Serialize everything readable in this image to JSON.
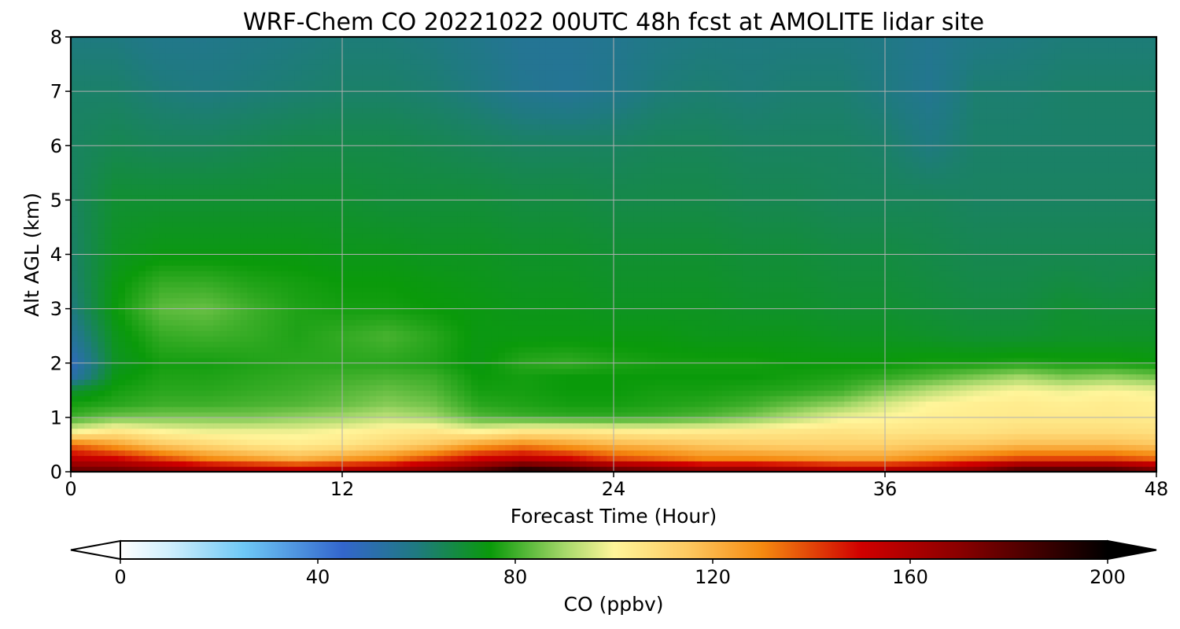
{
  "chart_data": {
    "type": "heatmap",
    "title": "WRF-Chem CO  20221022 00UTC 48h fcst at AMOLITE lidar site",
    "xlabel": "Forecast Time (Hour)",
    "ylabel": "Alt AGL (km)",
    "xlim": [
      0,
      48
    ],
    "ylim": [
      0,
      8
    ],
    "x_ticks": [
      "0",
      "12",
      "24",
      "36",
      "48"
    ],
    "x_tick_values": [
      0,
      12,
      24,
      36,
      48
    ],
    "y_ticks": [
      "0",
      "1",
      "2",
      "3",
      "4",
      "5",
      "6",
      "7",
      "8"
    ],
    "y_tick_values": [
      0,
      1,
      2,
      3,
      4,
      5,
      6,
      7,
      8
    ],
    "grid": true,
    "colorbar": {
      "label": "CO  (ppbv)",
      "range": [
        0,
        200
      ],
      "ticks": [
        "0",
        "40",
        "80",
        "120",
        "160",
        "200"
      ],
      "tick_values": [
        0,
        40,
        80,
        120,
        160,
        200
      ],
      "extend": "both",
      "placement": "bottom",
      "color_stops": [
        {
          "value": 0,
          "color": "#ffffff"
        },
        {
          "value": 10,
          "color": "#cfeefc"
        },
        {
          "value": 25,
          "color": "#6ec8f5"
        },
        {
          "value": 45,
          "color": "#3366cc"
        },
        {
          "value": 60,
          "color": "#1f7a80"
        },
        {
          "value": 75,
          "color": "#0a9a0a"
        },
        {
          "value": 90,
          "color": "#a6d86a"
        },
        {
          "value": 100,
          "color": "#fff59a"
        },
        {
          "value": 115,
          "color": "#fdc860"
        },
        {
          "value": 130,
          "color": "#f58a10"
        },
        {
          "value": 150,
          "color": "#d00000"
        },
        {
          "value": 170,
          "color": "#8a0000"
        },
        {
          "value": 200,
          "color": "#000000"
        }
      ]
    },
    "hours": [
      0,
      2,
      4,
      6,
      8,
      10,
      12,
      14,
      16,
      18,
      20,
      22,
      24,
      26,
      28,
      30,
      32,
      34,
      36,
      38,
      40,
      42,
      44,
      46,
      48
    ],
    "altitudes_km": [
      0,
      0.25,
      0.5,
      0.75,
      1.0,
      1.25,
      1.5,
      1.75,
      2.0,
      2.5,
      3.0,
      3.5,
      4.0,
      5.0,
      6.0,
      7.0,
      8.0
    ],
    "co_ppbv": [
      [
        180,
        180,
        175,
        170,
        165,
        162,
        165,
        168,
        175,
        185,
        200,
        195,
        185,
        180,
        175,
        175,
        170,
        165,
        165,
        168,
        175,
        190,
        190,
        190,
        180
      ],
      [
        155,
        150,
        140,
        130,
        125,
        120,
        125,
        130,
        140,
        150,
        155,
        150,
        140,
        135,
        130,
        130,
        128,
        125,
        125,
        130,
        135,
        140,
        140,
        140,
        135
      ],
      [
        135,
        125,
        115,
        110,
        105,
        103,
        105,
        110,
        115,
        125,
        130,
        125,
        120,
        118,
        115,
        113,
        112,
        112,
        112,
        114,
        115,
        118,
        118,
        118,
        115
      ],
      [
        98,
        105,
        100,
        98,
        98,
        98,
        100,
        103,
        105,
        100,
        105,
        105,
        103,
        102,
        103,
        104,
        105,
        106,
        105,
        106,
        106,
        108,
        108,
        108,
        107
      ],
      [
        80,
        85,
        86,
        86,
        86,
        88,
        90,
        93,
        90,
        82,
        80,
        79,
        79,
        80,
        82,
        86,
        92,
        98,
        100,
        102,
        103,
        104,
        104,
        104,
        103
      ],
      [
        76,
        78,
        80,
        80,
        81,
        82,
        84,
        87,
        85,
        78,
        77,
        76,
        76,
        77,
        78,
        80,
        84,
        88,
        95,
        100,
        102,
        103,
        102,
        103,
        102
      ],
      [
        70,
        76,
        78,
        78,
        79,
        80,
        82,
        84,
        82,
        76,
        76,
        75,
        75,
        76,
        76,
        77,
        78,
        80,
        86,
        92,
        97,
        100,
        98,
        100,
        98
      ],
      [
        52,
        74,
        77,
        77,
        78,
        79,
        80,
        81,
        80,
        75,
        76,
        75,
        75,
        75,
        75,
        75,
        76,
        77,
        79,
        82,
        86,
        90,
        86,
        88,
        85
      ],
      [
        48,
        72,
        76,
        76,
        77,
        78,
        78,
        78,
        77,
        74,
        78,
        79,
        77,
        76,
        76,
        76,
        75,
        75,
        75,
        76,
        76,
        77,
        76,
        76,
        75
      ],
      [
        55,
        73,
        79,
        80,
        79,
        77,
        79,
        81,
        78,
        74,
        74,
        74,
        74,
        74,
        73,
        73,
        73,
        72,
        72,
        71,
        70,
        70,
        71,
        71,
        71
      ],
      [
        60,
        75,
        83,
        84,
        80,
        77,
        76,
        76,
        75,
        74,
        73,
        73,
        72,
        72,
        72,
        71,
        71,
        70,
        70,
        69,
        68,
        68,
        70,
        69,
        69
      ],
      [
        62,
        74,
        79,
        79,
        77,
        76,
        75,
        75,
        74,
        73,
        72,
        72,
        71,
        71,
        71,
        70,
        70,
        69,
        69,
        68,
        67,
        67,
        68,
        67,
        68
      ],
      [
        63,
        72,
        74,
        74,
        74,
        74,
        73,
        73,
        72,
        72,
        71,
        71,
        70,
        70,
        70,
        69,
        69,
        68,
        68,
        67,
        66,
        66,
        66,
        66,
        66
      ],
      [
        64,
        70,
        70,
        70,
        70,
        70,
        70,
        69,
        69,
        69,
        68,
        68,
        67,
        67,
        67,
        66,
        66,
        65,
        65,
        65,
        64,
        64,
        64,
        64,
        64
      ],
      [
        64,
        66,
        65,
        65,
        66,
        67,
        67,
        67,
        66,
        65,
        64,
        64,
        64,
        65,
        65,
        64,
        64,
        64,
        63,
        60,
        63,
        63,
        63,
        63,
        63
      ],
      [
        63,
        63,
        61,
        60,
        61,
        62,
        63,
        63,
        62,
        60,
        57,
        56,
        58,
        61,
        62,
        61,
        62,
        62,
        60,
        57,
        62,
        62,
        63,
        63,
        63
      ],
      [
        60,
        60,
        58,
        58,
        59,
        60,
        61,
        61,
        60,
        58,
        56,
        56,
        57,
        59,
        60,
        60,
        60,
        60,
        59,
        57,
        59,
        60,
        61,
        61,
        61
      ]
    ]
  }
}
